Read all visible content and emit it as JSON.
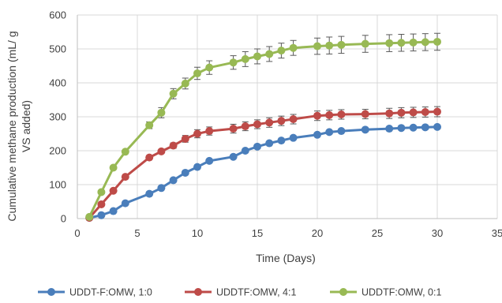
{
  "chart_data": {
    "type": "line",
    "title": "",
    "xlabel": "Time (Days)",
    "ylabel_lines": [
      "Cumulative methane production (mL/ g",
      "VS added)"
    ],
    "xlim": [
      0,
      35
    ],
    "ylim": [
      0,
      600
    ],
    "xticks": [
      0,
      5,
      10,
      15,
      20,
      25,
      30,
      35
    ],
    "yticks": [
      0,
      100,
      200,
      300,
      400,
      500,
      600
    ],
    "grid": "vertical and horizontal",
    "legend_position": "bottom",
    "error_bars": true,
    "series": [
      {
        "name": "UDDT-F:OMW, 1:0",
        "color": "#4a7ebb",
        "x": [
          1,
          2,
          3,
          4,
          6,
          7,
          8,
          9,
          10,
          11,
          13,
          14,
          15,
          16,
          17,
          18,
          20,
          21,
          22,
          24,
          26,
          27,
          28,
          29,
          30
        ],
        "values": [
          2,
          10,
          22,
          45,
          73,
          90,
          113,
          135,
          152,
          170,
          182,
          200,
          212,
          222,
          230,
          238,
          247,
          255,
          258,
          262,
          265,
          267,
          268,
          269,
          270
        ],
        "errors": [
          0,
          0,
          0,
          0,
          0,
          0,
          0,
          0,
          0,
          0,
          0,
          0,
          0,
          0,
          0,
          0,
          0,
          0,
          0,
          0,
          0,
          0,
          0,
          0,
          0
        ]
      },
      {
        "name": "UDDTF:OMW, 4:1",
        "color": "#be4b48",
        "x": [
          1,
          2,
          3,
          4,
          6,
          7,
          8,
          9,
          10,
          11,
          13,
          14,
          15,
          16,
          17,
          18,
          20,
          21,
          22,
          24,
          26,
          27,
          28,
          29,
          30
        ],
        "values": [
          2,
          42,
          82,
          123,
          180,
          198,
          215,
          235,
          250,
          258,
          265,
          272,
          278,
          283,
          288,
          293,
          303,
          305,
          307,
          308,
          310,
          312,
          313,
          314,
          315
        ],
        "errors": [
          0,
          0,
          0,
          0,
          0,
          5,
          8,
          10,
          12,
          12,
          13,
          13,
          13,
          14,
          14,
          14,
          14,
          14,
          14,
          14,
          15,
          15,
          15,
          15,
          15
        ]
      },
      {
        "name": "UDDTF:OMW, 0:1",
        "color": "#98b954",
        "x": [
          1,
          2,
          3,
          4,
          6,
          7,
          8,
          9,
          10,
          11,
          13,
          14,
          15,
          16,
          17,
          18,
          20,
          21,
          22,
          24,
          26,
          27,
          28,
          29,
          30
        ],
        "values": [
          5,
          78,
          150,
          197,
          275,
          312,
          368,
          398,
          428,
          445,
          460,
          470,
          478,
          485,
          495,
          503,
          508,
          510,
          512,
          515,
          517,
          518,
          519,
          520,
          521
        ],
        "errors": [
          0,
          0,
          0,
          0,
          10,
          15,
          15,
          16,
          18,
          20,
          20,
          22,
          22,
          22,
          22,
          22,
          24,
          25,
          25,
          25,
          25,
          25,
          25,
          25,
          25
        ]
      }
    ]
  }
}
